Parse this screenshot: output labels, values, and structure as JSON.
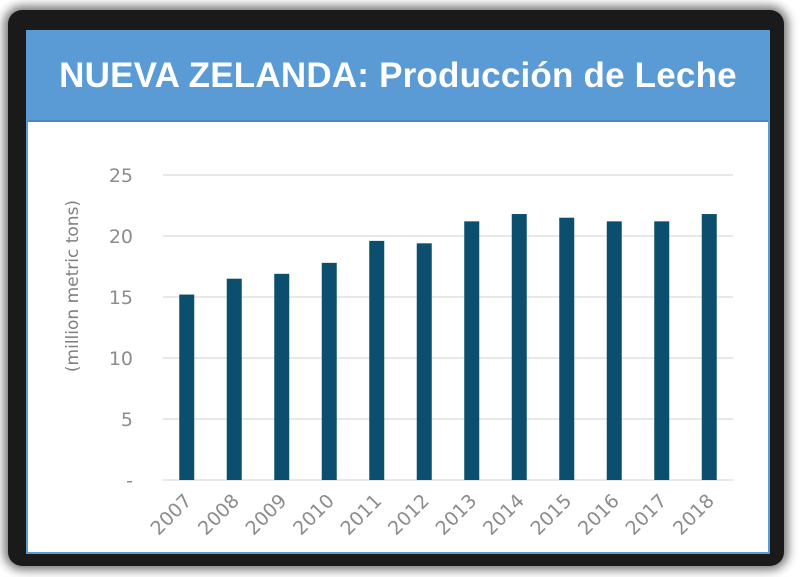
{
  "header": {
    "title": "NUEVA ZELANDA: Producción de Leche"
  },
  "colors": {
    "bar": "#0b4e6e",
    "title_bg": "#5b9bd5",
    "grid": "#d9d9d9",
    "tick": "#8c8c8c"
  },
  "chart_data": {
    "type": "bar",
    "title": "NUEVA ZELANDA: Producción de Leche",
    "ylabel": "(million metric tons)",
    "xlabel": "",
    "categories": [
      "2007",
      "2008",
      "2009",
      "2010",
      "2011",
      "2012",
      "2013",
      "2014",
      "2015",
      "2016",
      "2017",
      "2018"
    ],
    "values": [
      15.2,
      16.5,
      16.9,
      17.8,
      19.6,
      19.4,
      21.2,
      21.8,
      21.5,
      21.2,
      21.2,
      21.8
    ],
    "ylim": [
      0,
      25
    ],
    "yticks": [
      {
        "value": 0,
        "label": "-"
      },
      {
        "value": 5,
        "label": "5"
      },
      {
        "value": 10,
        "label": "10"
      },
      {
        "value": 15,
        "label": "15"
      },
      {
        "value": 20,
        "label": "20"
      },
      {
        "value": 25,
        "label": "25"
      }
    ],
    "grid": true,
    "legend": "none"
  }
}
